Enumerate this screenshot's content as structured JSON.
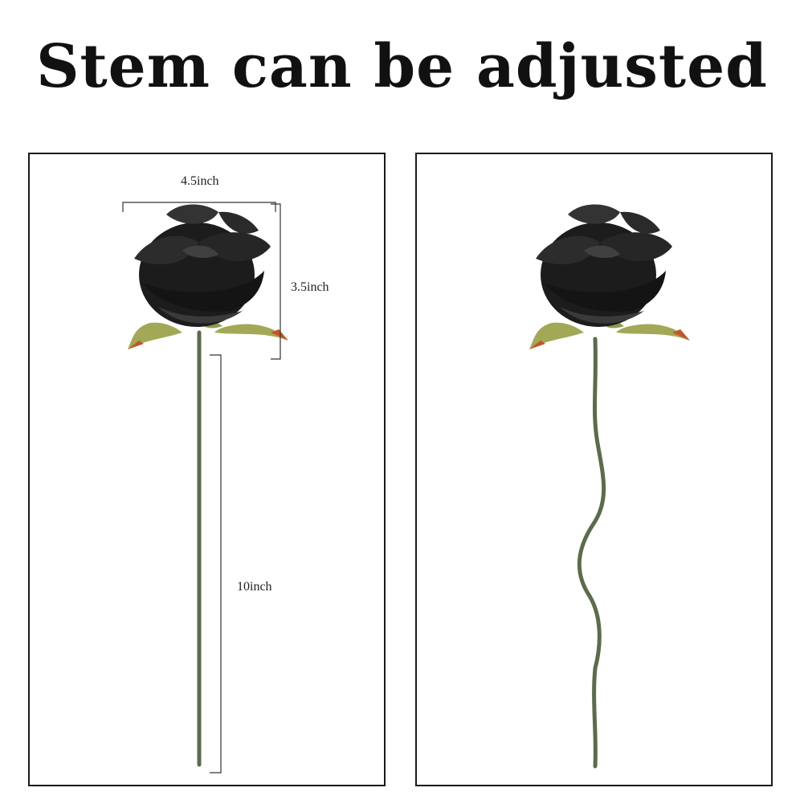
{
  "title": "Stem can be adjusted",
  "left_panel": {
    "width_label": "4.5inch",
    "head_height_label": "3.5inch",
    "stem_length_label": "10inch"
  },
  "colors": {
    "petal": "#1c1c1c",
    "petal_highlight": "#3a3a3a",
    "stem": "#5b6b4c",
    "leaf": "#a3a857",
    "leaf_tip": "#c2562a"
  }
}
